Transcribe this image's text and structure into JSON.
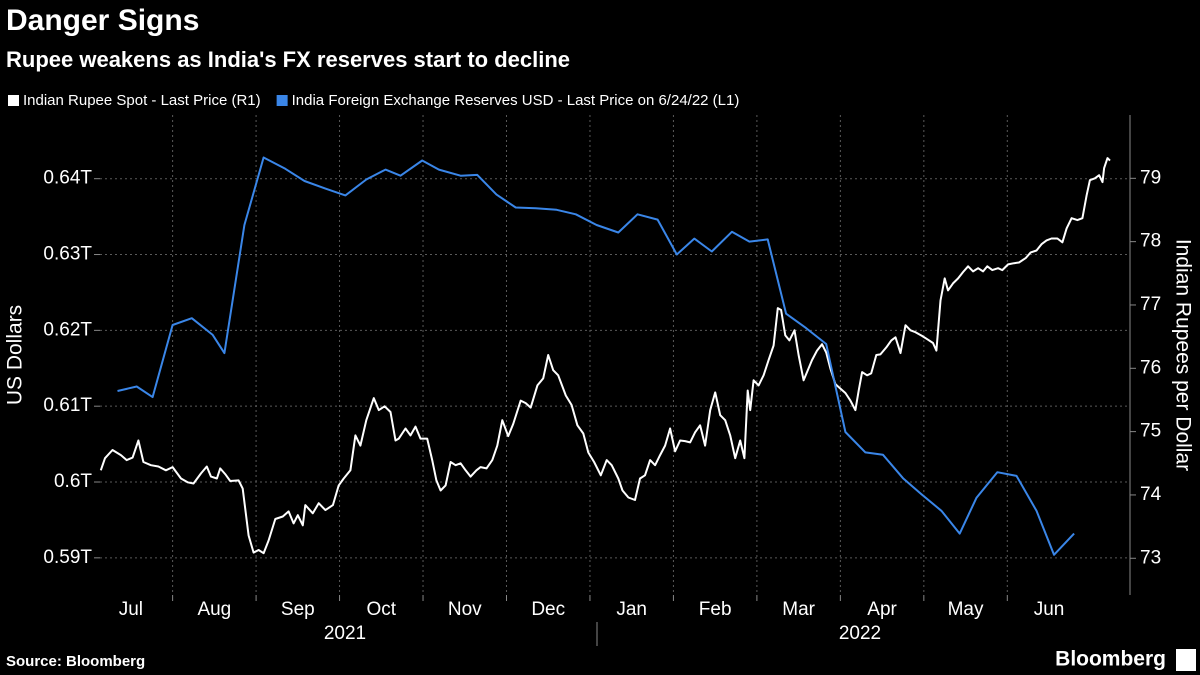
{
  "chart_data": {
    "type": "line",
    "title": "Danger Signs",
    "subtitle": "Rupee weakens as India's FX reserves start to decline",
    "source": "Source: Bloomberg",
    "brand": "Bloomberg",
    "ylabel": "US Dollars",
    "y2label": "Indian Rupees per Dollar",
    "xlim": [
      0.13,
      12.47
    ],
    "xticks": [
      {
        "value": 0,
        "label": "Jul"
      },
      {
        "value": 1,
        "label": "Aug"
      },
      {
        "value": 2,
        "label": "Sep"
      },
      {
        "value": 3,
        "label": "Oct"
      },
      {
        "value": 4,
        "label": "Nov"
      },
      {
        "value": 5,
        "label": "Dec"
      },
      {
        "value": 6,
        "label": "Jan"
      },
      {
        "value": 7,
        "label": "Feb"
      },
      {
        "value": 8,
        "label": "Mar"
      },
      {
        "value": 9,
        "label": "Apr"
      },
      {
        "value": 10,
        "label": "May"
      },
      {
        "value": 11,
        "label": "Jun"
      }
    ],
    "x_groups": [
      {
        "label": "2021",
        "from": 0.13,
        "to": 6
      },
      {
        "label": "2022",
        "from": 6,
        "to": 12.47
      }
    ],
    "ylim": [
      0.5851,
      0.6484
    ],
    "yticks": [
      {
        "value": 0.59,
        "label": "0.59T"
      },
      {
        "value": 0.6,
        "label": "0.6T"
      },
      {
        "value": 0.61,
        "label": "0.61T"
      },
      {
        "value": 0.62,
        "label": "0.62T"
      },
      {
        "value": 0.63,
        "label": "0.63T"
      },
      {
        "value": 0.64,
        "label": "0.64T"
      }
    ],
    "y2lim": [
      72.42,
      80.0
    ],
    "y2ticks": [
      73,
      74,
      75,
      76,
      77,
      78,
      79
    ],
    "grid": true,
    "series": [
      {
        "name": "Indian Rupee Spot - Last Price (R1)",
        "color": "#ffffff",
        "axis": "y2",
        "x": [
          0.14,
          0.19,
          0.28,
          0.38,
          0.45,
          0.52,
          0.59,
          0.65,
          0.74,
          0.83,
          0.92,
          1.0,
          1.1,
          1.18,
          1.25,
          1.34,
          1.41,
          1.46,
          1.53,
          1.57,
          1.63,
          1.69,
          1.79,
          1.84,
          1.91,
          1.97,
          2.03,
          2.09,
          2.15,
          2.23,
          2.32,
          2.39,
          2.45,
          2.5,
          2.56,
          2.59,
          2.68,
          2.75,
          2.83,
          2.92,
          2.99,
          3.05,
          3.13,
          3.19,
          3.25,
          3.32,
          3.41,
          3.47,
          3.54,
          3.61,
          3.67,
          3.71,
          3.79,
          3.85,
          3.91,
          3.97,
          4.05,
          4.11,
          4.16,
          4.21,
          4.27,
          4.33,
          4.39,
          4.45,
          4.51,
          4.57,
          4.64,
          4.69,
          4.76,
          4.83,
          4.89,
          4.95,
          5.02,
          5.08,
          5.17,
          5.23,
          5.29,
          5.37,
          5.44,
          5.5,
          5.56,
          5.62,
          5.71,
          5.78,
          5.85,
          5.92,
          5.98,
          6.05,
          6.13,
          6.2,
          6.26,
          6.34,
          6.39,
          6.46,
          6.54,
          6.6,
          6.66,
          6.72,
          6.78,
          6.84,
          6.9,
          6.96,
          7.02,
          7.08,
          7.14,
          7.2,
          7.26,
          7.32,
          7.38,
          7.44,
          7.5,
          7.56,
          7.62,
          7.68,
          7.74,
          7.8,
          7.85,
          7.89,
          7.92,
          7.96,
          8.02,
          8.08,
          8.14,
          8.2,
          8.25,
          8.29,
          8.34,
          8.39,
          8.45,
          8.5,
          8.56,
          8.6,
          8.66,
          8.72,
          8.78,
          8.83,
          8.88,
          8.94,
          9.0,
          9.06,
          9.12,
          9.18,
          9.22,
          9.26,
          9.32,
          9.37,
          9.43,
          9.48,
          9.55,
          9.61,
          9.66,
          9.72,
          9.78,
          9.84,
          9.9,
          9.98,
          10.04,
          10.11,
          10.15,
          10.2,
          10.25,
          10.29,
          10.35,
          10.41,
          10.47,
          10.53,
          10.59,
          10.65,
          10.71,
          10.76,
          10.82,
          10.89,
          10.94,
          11.01,
          11.08,
          11.14,
          11.22,
          11.28,
          11.35,
          11.41,
          11.47,
          11.53,
          11.6,
          11.66,
          11.71,
          11.77,
          11.84,
          11.9,
          11.95,
          11.99,
          12.05,
          12.1,
          12.14,
          12.16,
          12.2,
          12.23
        ],
        "values": [
          74.39,
          74.58,
          74.71,
          74.63,
          74.55,
          74.59,
          74.86,
          74.52,
          74.47,
          74.45,
          74.39,
          74.44,
          74.26,
          74.2,
          74.18,
          74.34,
          74.45,
          74.29,
          74.26,
          74.42,
          74.33,
          74.22,
          74.23,
          74.1,
          73.36,
          73.09,
          73.13,
          73.08,
          73.28,
          73.62,
          73.66,
          73.74,
          73.55,
          73.68,
          73.52,
          73.84,
          73.71,
          73.87,
          73.76,
          73.84,
          74.15,
          74.26,
          74.39,
          74.94,
          74.78,
          75.18,
          75.53,
          75.34,
          75.4,
          75.31,
          74.86,
          74.89,
          75.05,
          74.94,
          75.08,
          74.89,
          74.89,
          74.55,
          74.23,
          74.07,
          74.15,
          74.52,
          74.47,
          74.5,
          74.39,
          74.29,
          74.39,
          74.44,
          74.42,
          74.55,
          74.78,
          75.18,
          74.93,
          75.12,
          75.49,
          75.45,
          75.38,
          75.73,
          75.84,
          76.21,
          75.97,
          75.89,
          75.57,
          75.42,
          75.1,
          74.97,
          74.67,
          74.52,
          74.31,
          74.55,
          74.47,
          74.26,
          74.07,
          73.96,
          73.92,
          74.26,
          74.31,
          74.55,
          74.47,
          74.63,
          74.78,
          75.05,
          74.69,
          74.86,
          74.85,
          74.83,
          74.99,
          75.1,
          74.78,
          75.34,
          75.62,
          75.26,
          75.18,
          74.94,
          74.58,
          74.86,
          74.58,
          75.65,
          75.34,
          75.81,
          75.73,
          75.89,
          76.13,
          76.36,
          76.95,
          76.92,
          76.52,
          76.44,
          76.6,
          76.21,
          75.81,
          75.94,
          76.13,
          76.28,
          76.38,
          76.25,
          76.0,
          75.75,
          75.68,
          75.61,
          75.49,
          75.34,
          75.65,
          75.94,
          75.89,
          75.92,
          76.21,
          76.22,
          76.33,
          76.44,
          76.49,
          76.24,
          76.68,
          76.6,
          76.57,
          76.51,
          76.46,
          76.4,
          76.28,
          77.07,
          77.42,
          77.23,
          77.34,
          77.42,
          77.52,
          77.61,
          77.53,
          77.58,
          77.53,
          77.61,
          77.55,
          77.58,
          77.55,
          77.64,
          77.66,
          77.67,
          77.74,
          77.83,
          77.86,
          77.96,
          78.02,
          78.05,
          78.05,
          77.99,
          78.21,
          78.37,
          78.34,
          78.37,
          78.73,
          78.97,
          79.0,
          79.05,
          78.94,
          79.16,
          79.32,
          79.28
        ]
      },
      {
        "name": "India Foreign Exchange Reserves USD - Last Price on 6/24/22 (L1)",
        "color": "#3a86e8",
        "axis": "y",
        "x": [
          0.34,
          0.57,
          0.76,
          1.0,
          1.23,
          1.48,
          1.62,
          1.86,
          2.09,
          2.35,
          2.58,
          2.83,
          3.07,
          3.32,
          3.55,
          3.73,
          3.99,
          4.19,
          4.45,
          4.65,
          4.88,
          5.11,
          5.35,
          5.6,
          5.83,
          6.08,
          6.34,
          6.57,
          6.81,
          7.04,
          7.25,
          7.46,
          7.7,
          7.91,
          8.13,
          8.35,
          8.59,
          8.83,
          9.06,
          9.3,
          9.51,
          9.75,
          9.97,
          10.21,
          10.43,
          10.63,
          10.88,
          11.11,
          11.35,
          11.56,
          11.8
        ],
        "values": [
          0.612,
          0.6126,
          0.6112,
          0.6207,
          0.6216,
          0.6194,
          0.617,
          0.6339,
          0.6428,
          0.6413,
          0.6397,
          0.6387,
          0.6378,
          0.6399,
          0.6412,
          0.6404,
          0.6424,
          0.6412,
          0.6404,
          0.6405,
          0.6379,
          0.6362,
          0.6361,
          0.6359,
          0.6353,
          0.6339,
          0.6329,
          0.6353,
          0.6346,
          0.63,
          0.6321,
          0.6304,
          0.633,
          0.6317,
          0.632,
          0.6222,
          0.6203,
          0.6182,
          0.6066,
          0.6039,
          0.6036,
          0.6005,
          0.5984,
          0.5962,
          0.5932,
          0.5979,
          0.6013,
          0.6008,
          0.5962,
          0.5904,
          0.5932
        ]
      }
    ]
  }
}
